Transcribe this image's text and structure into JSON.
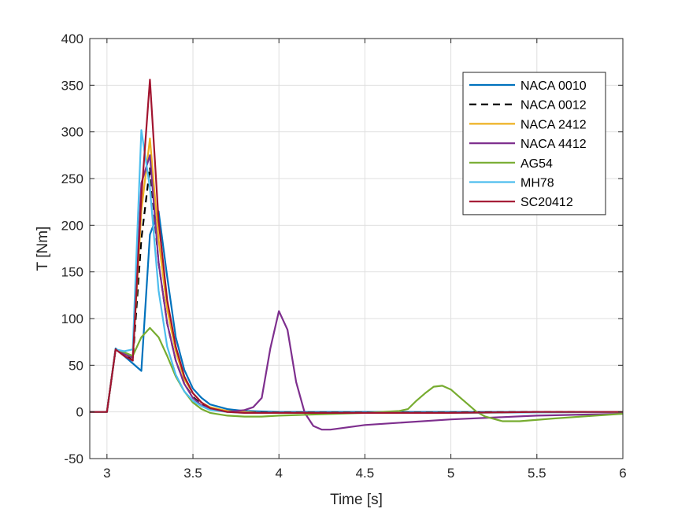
{
  "chart_data": {
    "type": "line",
    "title": "",
    "xlabel": "Time [s]",
    "ylabel": "T [Nm]",
    "xlim": [
      2.9,
      6
    ],
    "ylim": [
      -50,
      400
    ],
    "xticks": [
      3,
      3.5,
      4,
      4.5,
      5,
      5.5,
      6
    ],
    "xtick_labels": [
      "3",
      "3.5",
      "4",
      "4.5",
      "5",
      "5.5",
      "6"
    ],
    "yticks": [
      -50,
      0,
      50,
      100,
      150,
      200,
      250,
      300,
      350,
      400
    ],
    "ytick_labels": [
      "-50",
      "0",
      "50",
      "100",
      "150",
      "200",
      "250",
      "300",
      "350",
      "400"
    ],
    "grid": true,
    "legend_position": "top-right",
    "series": [
      {
        "name": "NACA 0010",
        "color": "#0072BD",
        "dash": "solid",
        "x": [
          2.9,
          3.0,
          3.05,
          3.1,
          3.15,
          3.2,
          3.25,
          3.3,
          3.35,
          3.4,
          3.45,
          3.5,
          3.55,
          3.6,
          3.7,
          3.8,
          3.9,
          4.0,
          4.5,
          5.0,
          5.5,
          6.0
        ],
        "y": [
          0,
          0,
          68,
          60,
          52,
          44,
          190,
          215,
          145,
          80,
          45,
          25,
          15,
          8,
          3,
          1,
          0.5,
          0,
          0,
          0,
          0,
          0
        ]
      },
      {
        "name": "NACA 0012",
        "color": "#000000",
        "dash": "dashed",
        "x": [
          2.9,
          3.0,
          3.05,
          3.1,
          3.15,
          3.2,
          3.25,
          3.3,
          3.35,
          3.4,
          3.45,
          3.5,
          3.55,
          3.6,
          3.7,
          3.8,
          3.9,
          4.0,
          4.5,
          5.0,
          5.5,
          6.0
        ],
        "y": [
          0,
          0,
          67,
          62,
          55,
          185,
          262,
          160,
          95,
          55,
          30,
          16,
          8,
          4,
          1,
          0,
          -0.5,
          -0.5,
          -0.5,
          -0.5,
          0,
          0
        ]
      },
      {
        "name": "NACA 2412",
        "color": "#EDB120",
        "dash": "solid",
        "x": [
          2.9,
          3.0,
          3.05,
          3.1,
          3.15,
          3.2,
          3.25,
          3.3,
          3.35,
          3.4,
          3.45,
          3.5,
          3.55,
          3.6,
          3.7,
          3.8,
          3.9,
          4.0,
          4.5,
          5.0,
          5.5,
          6.0
        ],
        "y": [
          0,
          0,
          67,
          62,
          58,
          215,
          293,
          185,
          110,
          65,
          35,
          20,
          10,
          5,
          1,
          0,
          -1,
          -1,
          -1,
          -1,
          -0.5,
          0
        ]
      },
      {
        "name": "NACA 4412",
        "color": "#7E2F8E",
        "dash": "solid",
        "x": [
          2.9,
          3.0,
          3.05,
          3.1,
          3.15,
          3.2,
          3.25,
          3.3,
          3.35,
          3.4,
          3.45,
          3.5,
          3.55,
          3.6,
          3.7,
          3.8,
          3.85,
          3.9,
          3.95,
          4.0,
          4.05,
          4.1,
          4.15,
          4.2,
          4.25,
          4.3,
          4.5,
          5.0,
          5.5,
          6.0
        ],
        "y": [
          0,
          0,
          67,
          62,
          58,
          245,
          275,
          160,
          95,
          55,
          30,
          15,
          7,
          3,
          0,
          2,
          5,
          15,
          68,
          108,
          88,
          32,
          -1,
          -15,
          -19,
          -19,
          -14,
          -8,
          -4,
          -2
        ]
      },
      {
        "name": "AG54",
        "color": "#77AC30",
        "dash": "solid",
        "x": [
          2.9,
          3.0,
          3.05,
          3.1,
          3.15,
          3.2,
          3.25,
          3.3,
          3.35,
          3.4,
          3.45,
          3.5,
          3.55,
          3.6,
          3.7,
          3.8,
          3.9,
          4.0,
          4.5,
          4.7,
          4.75,
          4.8,
          4.85,
          4.9,
          4.95,
          5.0,
          5.05,
          5.1,
          5.15,
          5.2,
          5.3,
          5.4,
          5.6,
          6.0
        ],
        "y": [
          0,
          0,
          67,
          64,
          60,
          80,
          90,
          80,
          60,
          38,
          22,
          10,
          3,
          -1,
          -4,
          -5,
          -5,
          -4,
          -1,
          1,
          3,
          12,
          20,
          27,
          28,
          24,
          16,
          8,
          0,
          -5,
          -10,
          -10,
          -7,
          -2
        ]
      },
      {
        "name": "MH78",
        "color": "#4DBEEE",
        "dash": "solid",
        "x": [
          2.9,
          3.0,
          3.05,
          3.1,
          3.15,
          3.2,
          3.25,
          3.3,
          3.35,
          3.4,
          3.45,
          3.5,
          3.55,
          3.6,
          3.7,
          3.8,
          3.9,
          4.0,
          4.5,
          5.0,
          5.5,
          6.0
        ],
        "y": [
          0,
          0,
          67,
          65,
          67,
          302,
          240,
          130,
          70,
          40,
          22,
          12,
          6,
          2,
          0,
          -1,
          -1,
          -1,
          -1,
          -1,
          -0.5,
          0
        ]
      },
      {
        "name": "SC20412",
        "color": "#A2142F",
        "dash": "solid",
        "x": [
          2.9,
          3.0,
          3.05,
          3.1,
          3.15,
          3.2,
          3.25,
          3.3,
          3.35,
          3.4,
          3.45,
          3.5,
          3.55,
          3.6,
          3.7,
          3.8,
          3.9,
          4.0,
          4.5,
          5.0,
          5.5,
          6.0
        ],
        "y": [
          0,
          0,
          67,
          60,
          55,
          230,
          356,
          205,
          120,
          70,
          38,
          20,
          10,
          4,
          0,
          -1,
          -1,
          -1,
          -1,
          -1,
          0,
          0
        ]
      }
    ]
  }
}
